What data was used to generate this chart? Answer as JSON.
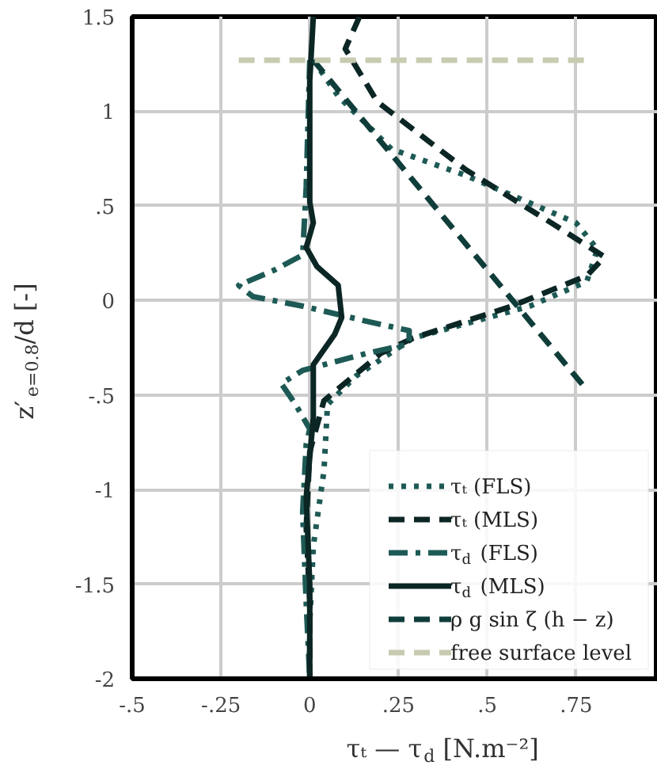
{
  "chart_data": {
    "type": "line",
    "xlabel": "τₜ — τ$_{d}$ [N.m⁻²]",
    "ylabel": "z′$_{e=0.8}$/d [-]",
    "xlim": [
      -0.5,
      0.98
    ],
    "xticks": [
      {
        "value": -0.5,
        "label": "-.5"
      },
      {
        "value": -0.25,
        "label": "-.25"
      },
      0,
      {
        "value": 0.25,
        "label": ".25"
      },
      {
        "value": 0.5,
        "label": ".5"
      },
      {
        "value": 0.75,
        "label": ".75"
      }
    ],
    "ylim": [
      -2,
      1.5
    ],
    "yticks": [
      -2,
      -1.5,
      -1,
      {
        "value": -0.5,
        "label": "-.5"
      },
      0,
      {
        "value": 0.5,
        "label": ".5"
      },
      1,
      1.5
    ],
    "grid": true,
    "legend": "bottom right",
    "series": [
      {
        "name": "τₜ (FLS)",
        "color": "#1e5a55",
        "line_style": "dotted",
        "x": [
          0.01,
          0.08,
          0.23,
          0.44,
          0.75,
          0.81,
          0.78,
          0.62,
          0.29,
          0.13,
          0.05,
          0.04,
          0.01,
          0.0,
          0.0
        ],
        "values": [
          1.27,
          1.08,
          0.8,
          0.66,
          0.41,
          0.27,
          0.1,
          -0.03,
          -0.2,
          -0.4,
          -0.55,
          -0.9,
          -1.3,
          -1.7,
          -2.0
        ]
      },
      {
        "name": "τₜ (MLS)",
        "color": "#0b2624",
        "line_style": "dashed",
        "x": [
          0.14,
          0.1,
          0.19,
          0.44,
          0.68,
          0.83,
          0.78,
          0.57,
          0.29,
          0.2,
          0.04,
          0.0,
          -0.01,
          0.0,
          0.0
        ],
        "values": [
          1.5,
          1.33,
          1.05,
          0.69,
          0.41,
          0.23,
          0.13,
          -0.03,
          -0.2,
          -0.28,
          -0.53,
          -0.8,
          -1.2,
          -1.6,
          -2.0
        ]
      },
      {
        "name": "τ$_{d}$ (FLS)",
        "color": "#1e5a55",
        "line_style": "dashdot",
        "x": [
          0.0,
          -0.01,
          -0.02,
          -0.1,
          -0.2,
          -0.16,
          -0.02,
          0.16,
          0.28,
          0.28,
          0.16,
          -0.02,
          -0.08,
          -0.04,
          0.0,
          -0.01,
          -0.02,
          -0.01,
          0.0
        ],
        "values": [
          1.27,
          0.6,
          0.24,
          0.16,
          0.08,
          0.02,
          -0.03,
          -0.11,
          -0.16,
          -0.23,
          -0.28,
          -0.37,
          -0.44,
          -0.55,
          -0.68,
          -0.76,
          -1.12,
          -1.6,
          -2.0
        ]
      },
      {
        "name": "τ$_{d}$ (MLS)",
        "color": "#0b2624",
        "line_style": "solid",
        "x": [
          0.01,
          0.0,
          0.0,
          0.01,
          -0.01,
          0.02,
          0.08,
          0.09,
          0.07,
          0.01,
          0.01,
          -0.01,
          0.0,
          0.0
        ],
        "values": [
          1.5,
          1.16,
          0.52,
          0.41,
          0.28,
          0.18,
          0.08,
          -0.09,
          -0.18,
          -0.34,
          -0.62,
          -1.04,
          -1.5,
          -2.0
        ]
      },
      {
        "name": "ρ g sin ζ (h − z)",
        "color": "#0f3d3a",
        "line_style": "dashed",
        "x": [
          0.01,
          0.77
        ],
        "values": [
          1.27,
          -0.45
        ]
      },
      {
        "name": "free surface level",
        "color": "#c8cbb0",
        "line_style": "dashed",
        "x": [
          -0.2,
          0.78
        ],
        "values": [
          1.27,
          1.27
        ]
      }
    ]
  }
}
